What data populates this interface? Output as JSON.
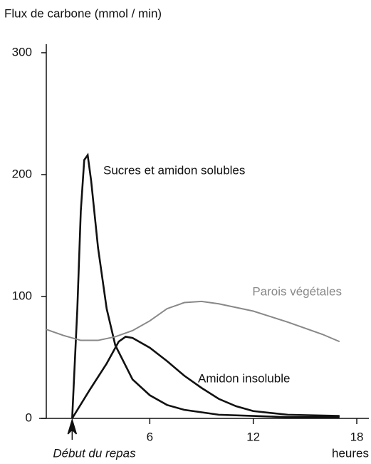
{
  "chart_data": {
    "type": "line",
    "y_axis_label": "Flux de carbone (mmol / min)",
    "x_axis_label": "heures",
    "annotations": [
      {
        "text": "Début du repas",
        "x": 1.5
      }
    ],
    "xlim": [
      0,
      18.7
    ],
    "xticks": [
      6,
      12,
      18
    ],
    "ylim": [
      0,
      307
    ],
    "yticks": [
      0,
      100,
      200,
      300
    ],
    "series": [
      {
        "name": "Sucres et amidon solubles",
        "color": "#111111",
        "x": [
          1.5,
          1.8,
          2.0,
          2.2,
          2.4,
          2.6,
          3.0,
          3.5,
          4.0,
          5.0,
          6.0,
          7.0,
          8.0,
          10.0,
          12.0,
          14.0,
          17.0
        ],
        "values": [
          0,
          90,
          170,
          212,
          216,
          195,
          140,
          90,
          60,
          32,
          19,
          11,
          7,
          3,
          2,
          1,
          1
        ]
      },
      {
        "name": "Parois végétales",
        "color": "#888888",
        "x": [
          0,
          1,
          2,
          3,
          4,
          5,
          6,
          7,
          8,
          9,
          10,
          12,
          14,
          16,
          17
        ],
        "values": [
          73,
          68,
          64,
          64,
          67,
          72,
          80,
          90,
          95,
          96,
          94,
          88,
          79,
          69,
          63
        ]
      },
      {
        "name": "Amidon insoluble",
        "color": "#111111",
        "x": [
          1.5,
          2.5,
          3.5,
          4.2,
          4.6,
          5.0,
          6.0,
          7.0,
          8.0,
          9.0,
          10.0,
          11.0,
          12.0,
          14.0,
          17.0
        ],
        "values": [
          0,
          23,
          45,
          63,
          67,
          66,
          58,
          47,
          35,
          25,
          16,
          10,
          6,
          3,
          2
        ]
      }
    ]
  }
}
